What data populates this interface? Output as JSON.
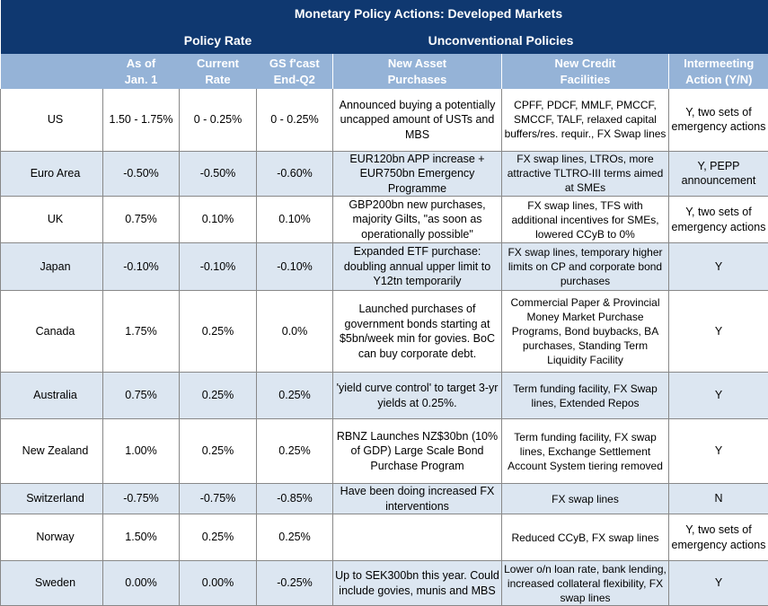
{
  "title": "Monetary Policy Actions: Developed Markets",
  "groups": {
    "policy_rate": "Policy Rate",
    "unconventional": "Unconventional Policies"
  },
  "headers": {
    "as_of_1": "As of",
    "as_of_2": "Jan. 1",
    "current_1": "Current",
    "current_2": "Rate",
    "fcast_1": "GS f'cast",
    "fcast_2": "End-Q2",
    "asset_1": "New Asset",
    "asset_2": "Purchases",
    "credit_1": "New Credit",
    "credit_2": "Facilities",
    "inter_1": "Intermeeting",
    "inter_2": "Action (Y/N)"
  },
  "rows": [
    {
      "country": "US",
      "jan1": "1.50  - 1.75%",
      "current": "0 - 0.25%",
      "fcast": "0 - 0.25%",
      "asset": "Announced buying a potentially uncapped amount of USTs and MBS",
      "credit": "CPFF, PDCF, MMLF, PMCCF, SMCCF, TALF, relaxed capital buffers/res. requir., FX Swap lines",
      "intermeeting": "Y, two sets of emergency actions"
    },
    {
      "country": "Euro Area",
      "jan1": "-0.50%",
      "current": "-0.50%",
      "fcast": "-0.60%",
      "asset": "EUR120bn APP increase + EUR750bn Emergency Programme",
      "credit": "FX swap lines, LTROs, more attractive TLTRO-III terms aimed at SMEs",
      "intermeeting": "Y, PEPP announcement"
    },
    {
      "country": "UK",
      "jan1": "0.75%",
      "current": "0.10%",
      "fcast": "0.10%",
      "asset": "GBP200bn new purchases, majority Gilts, \"as soon as operationally possible\"",
      "credit": "FX swap lines, TFS with additional incentives for SMEs, lowered CCyB to 0%",
      "intermeeting": "Y, two sets of emergency actions"
    },
    {
      "country": "Japan",
      "jan1": "-0.10%",
      "current": "-0.10%",
      "fcast": "-0.10%",
      "asset": "Expanded ETF purchase: doubling annual upper limit to Y12tn temporarily",
      "credit": "FX swap lines, temporary higher limits on CP and corporate bond purchases",
      "intermeeting": "Y"
    },
    {
      "country": "Canada",
      "jan1": "1.75%",
      "current": "0.25%",
      "fcast": "0.0%",
      "asset": "Launched purchases of government bonds starting at $5bn/week min for govies. BoC can buy corporate debt.",
      "credit": "Commercial Paper & Provincial Money Market Purchase Programs, Bond buybacks, BA purchases, Standing Term Liquidity Facility",
      "intermeeting": "Y"
    },
    {
      "country": "Australia",
      "jan1": "0.75%",
      "current": "0.25%",
      "fcast": "0.25%",
      "asset": "'yield curve control' to target 3-yr yields at 0.25%.",
      "credit": "Term funding facility, FX Swap lines, Extended Repos",
      "intermeeting": "Y"
    },
    {
      "country": "New Zealand",
      "jan1": "1.00%",
      "current": "0.25%",
      "fcast": "0.25%",
      "asset": "RBNZ Launches NZ$30bn (10% of GDP) Large Scale Bond Purchase Program",
      "credit": "Term funding facility, FX swap lines, Exchange Settlement Account System tiering removed",
      "intermeeting": "Y"
    },
    {
      "country": "Switzerland",
      "jan1": "-0.75%",
      "current": "-0.75%",
      "fcast": "-0.85%",
      "asset": "Have been doing increased FX interventions",
      "credit": "FX swap lines",
      "intermeeting": "N"
    },
    {
      "country": "Norway",
      "jan1": "1.50%",
      "current": "0.25%",
      "fcast": "0.25%",
      "asset": "",
      "credit": "Reduced CCyB, FX swap lines",
      "intermeeting": "Y, two sets of emergency actions"
    },
    {
      "country": "Sweden",
      "jan1": "0.00%",
      "current": "0.00%",
      "fcast": "-0.25%",
      "asset": "Up to SEK300bn this year. Could include govies, munis and MBS",
      "credit": "Lower o/n loan rate, bank lending, increased collateral flexibility, FX swap lines",
      "intermeeting": "Y"
    }
  ]
}
